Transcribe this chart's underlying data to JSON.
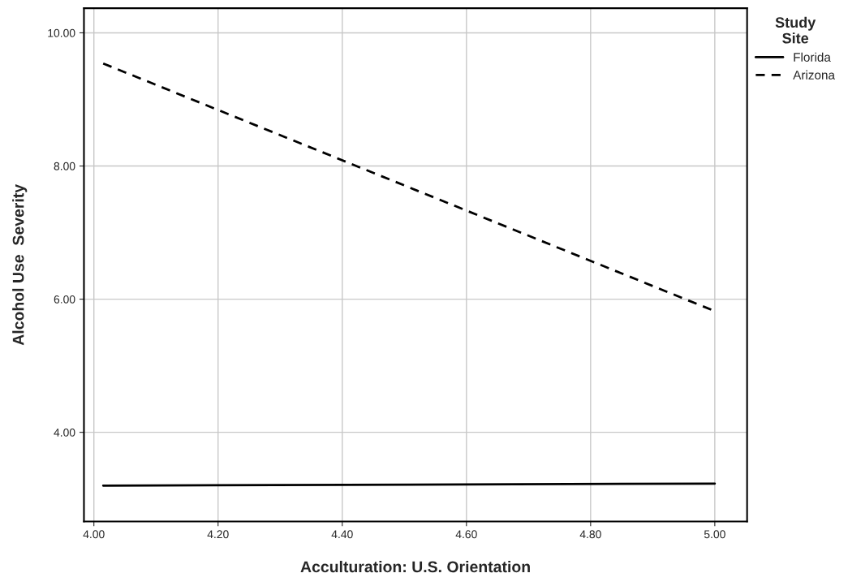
{
  "chart_data": {
    "type": "line",
    "xlabel": "Acculturation: U.S. Orientation",
    "ylabel": "Alcohol Use  Severity",
    "legend_title": "Study\nSite",
    "x": [
      4.015,
      5.0
    ],
    "series": [
      {
        "name": "Florida",
        "color": "#000000",
        "line_style": "solid",
        "values": [
          3.2,
          3.23
        ]
      },
      {
        "name": "Arizona",
        "color": "#000000",
        "line_style": "dashed",
        "values": [
          9.54,
          5.82
        ]
      }
    ],
    "xlim": [
      3.984,
      5.052
    ],
    "ylim": [
      2.66,
      10.37
    ],
    "xticks": [
      {
        "value": 4.0,
        "label": "4.00"
      },
      {
        "value": 4.2,
        "label": "4.20"
      },
      {
        "value": 4.4,
        "label": "4.40"
      },
      {
        "value": 4.6,
        "label": "4.60"
      },
      {
        "value": 4.8,
        "label": "4.80"
      },
      {
        "value": 5.0,
        "label": "5.00"
      }
    ],
    "yticks": [
      {
        "value": 4.0,
        "label": "4.00"
      },
      {
        "value": 6.0,
        "label": "6.00"
      },
      {
        "value": 8.0,
        "label": "8.00"
      },
      {
        "value": 10.0,
        "label": "10.00"
      }
    ],
    "grid": true,
    "legend": "right",
    "marker": "none"
  }
}
